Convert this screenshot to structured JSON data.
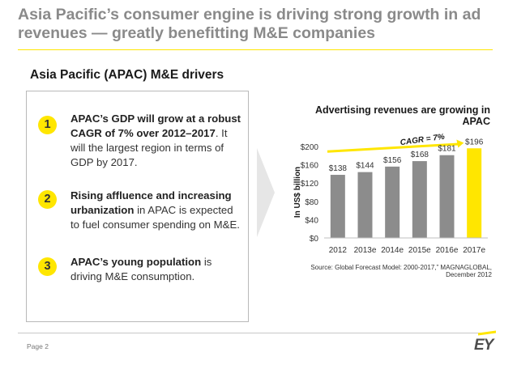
{
  "slide": {
    "title": "Asia Pacific’s consumer engine is driving strong growth in ad revenues — greatly benefitting M&E companies",
    "section_heading": "Asia Pacific (APAC) M&E drivers",
    "page_label": "Page 2",
    "logo_text": "EY"
  },
  "drivers": [
    {
      "number": "1",
      "bold": "APAC’s GDP will grow at a robust CAGR of 7% over 2012–2017",
      "text": ". It will the largest region in terms of GDP by 2017."
    },
    {
      "number": "2",
      "bold": "Rising affluence and increasing urbanization",
      "text": " in APAC is expected to fuel consumer spending on M&E."
    },
    {
      "number": "3",
      "bold": "APAC’s young population",
      "text": " is driving M&E consumption."
    }
  ],
  "colors": {
    "accent": "#ffe600",
    "bar": "#8c8c8c",
    "bar_highlight": "#ffe600",
    "title_gray": "#8a8a8a"
  },
  "chart_data": {
    "type": "bar",
    "title": "Advertising revenues are growing in APAC",
    "ylabel": "In US$ billion",
    "categories": [
      "2012",
      "2013e",
      "2014e",
      "2015e",
      "2016e",
      "2017e"
    ],
    "values": [
      138,
      144,
      156,
      168,
      181,
      196
    ],
    "data_labels": [
      "$138",
      "$144",
      "$156",
      "$168",
      "$181",
      "$196"
    ],
    "yticks": [
      "$0",
      "$40",
      "$80",
      "$120",
      "$160",
      "$200"
    ],
    "ylim": [
      0,
      200
    ],
    "highlight_index": 5,
    "annotation": "CAGR = 7%",
    "source": "Source: Global Forecast Model: 2000-2017,” MAGNAGLOBAL, December 2012"
  }
}
